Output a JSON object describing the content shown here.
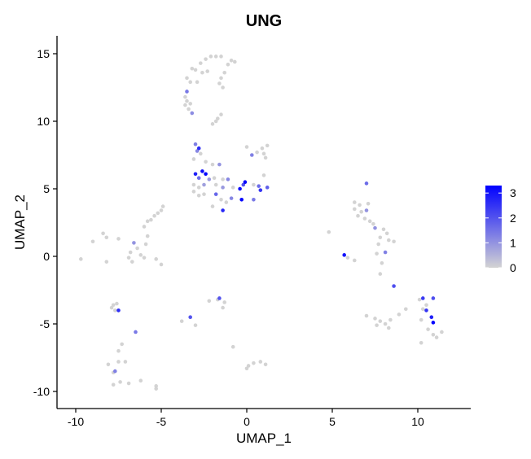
{
  "chart_data": {
    "type": "scatter",
    "title": "UNG",
    "xlabel": "UMAP_1",
    "ylabel": "UMAP_2",
    "xlim": [
      -11,
      13
    ],
    "ylim": [
      -11.2,
      16.2
    ],
    "xticks": [
      -10,
      -5,
      0,
      5,
      10
    ],
    "yticks": [
      -10,
      -5,
      0,
      5,
      10,
      15
    ],
    "grid": false,
    "legend": {
      "position": "right",
      "type": "colorbar",
      "min": 0,
      "max": 3.3,
      "ticks": [
        0,
        1,
        2,
        3
      ],
      "low_color": "#d3d3d3",
      "high_color": "#0000ff"
    },
    "points": [
      {
        "x": -2.4,
        "y": 14.6,
        "v": 0
      },
      {
        "x": -2.1,
        "y": 14.8,
        "v": 0
      },
      {
        "x": -1.8,
        "y": 14.8,
        "v": 0
      },
      {
        "x": -1.5,
        "y": 14.8,
        "v": 0
      },
      {
        "x": -2.7,
        "y": 14.3,
        "v": 0
      },
      {
        "x": -3.0,
        "y": 13.8,
        "v": 0
      },
      {
        "x": -3.2,
        "y": 13.9,
        "v": 0
      },
      {
        "x": -2.6,
        "y": 13.6,
        "v": 0
      },
      {
        "x": -2.3,
        "y": 13.7,
        "v": 0
      },
      {
        "x": -3.5,
        "y": 13.2,
        "v": 0
      },
      {
        "x": -3.3,
        "y": 12.9,
        "v": 0
      },
      {
        "x": -2.9,
        "y": 12.9,
        "v": 0
      },
      {
        "x": -1.1,
        "y": 14.2,
        "v": 0
      },
      {
        "x": -0.9,
        "y": 14.5,
        "v": 0
      },
      {
        "x": -0.7,
        "y": 14.4,
        "v": 0
      },
      {
        "x": -1.3,
        "y": 13.6,
        "v": 0
      },
      {
        "x": -1.5,
        "y": 13.2,
        "v": 0
      },
      {
        "x": -1.6,
        "y": 12.8,
        "v": 0
      },
      {
        "x": -1.4,
        "y": 12.5,
        "v": 0
      },
      {
        "x": -3.5,
        "y": 12.2,
        "v": 1.4
      },
      {
        "x": -3.6,
        "y": 11.8,
        "v": 0
      },
      {
        "x": -3.5,
        "y": 11.5,
        "v": 0
      },
      {
        "x": -3.3,
        "y": 11.3,
        "v": 0
      },
      {
        "x": -3.6,
        "y": 11.2,
        "v": 0
      },
      {
        "x": -3.4,
        "y": 10.9,
        "v": 0
      },
      {
        "x": -3.2,
        "y": 10.6,
        "v": 1.1
      },
      {
        "x": -1.5,
        "y": 10.5,
        "v": 0
      },
      {
        "x": -1.7,
        "y": 10.2,
        "v": 0
      },
      {
        "x": -1.8,
        "y": 10.0,
        "v": 0
      },
      {
        "x": -2.0,
        "y": 9.8,
        "v": 0
      },
      {
        "x": -3.0,
        "y": 8.3,
        "v": 1.3
      },
      {
        "x": -2.8,
        "y": 8.0,
        "v": 2.6
      },
      {
        "x": -2.9,
        "y": 7.8,
        "v": 1.2
      },
      {
        "x": -2.7,
        "y": 7.6,
        "v": 0
      },
      {
        "x": -3.1,
        "y": 7.2,
        "v": 0
      },
      {
        "x": -2.4,
        "y": 7.0,
        "v": 0
      },
      {
        "x": -2.0,
        "y": 6.8,
        "v": 0
      },
      {
        "x": -1.6,
        "y": 6.8,
        "v": 1.0
      },
      {
        "x": 0.0,
        "y": 8.1,
        "v": 0
      },
      {
        "x": 0.6,
        "y": 7.7,
        "v": 0
      },
      {
        "x": 0.9,
        "y": 8.0,
        "v": 0
      },
      {
        "x": 1.2,
        "y": 8.2,
        "v": 0
      },
      {
        "x": 1.0,
        "y": 7.6,
        "v": 0
      },
      {
        "x": 0.3,
        "y": 7.5,
        "v": 1.3
      },
      {
        "x": 1.1,
        "y": 7.3,
        "v": 0
      },
      {
        "x": -2.6,
        "y": 6.3,
        "v": 3.1
      },
      {
        "x": -3.0,
        "y": 6.1,
        "v": 2.8
      },
      {
        "x": -2.4,
        "y": 6.1,
        "v": 3.2
      },
      {
        "x": -2.8,
        "y": 5.8,
        "v": 1.6
      },
      {
        "x": -2.2,
        "y": 5.7,
        "v": 0.9
      },
      {
        "x": -1.9,
        "y": 5.8,
        "v": 0
      },
      {
        "x": -1.4,
        "y": 5.7,
        "v": 0
      },
      {
        "x": -1.1,
        "y": 5.7,
        "v": 1.2
      },
      {
        "x": -3.1,
        "y": 5.3,
        "v": 0
      },
      {
        "x": -2.8,
        "y": 5.1,
        "v": 0
      },
      {
        "x": -2.5,
        "y": 5.3,
        "v": 0.8
      },
      {
        "x": -1.8,
        "y": 5.3,
        "v": 0
      },
      {
        "x": -1.4,
        "y": 5.1,
        "v": 0.9
      },
      {
        "x": -0.8,
        "y": 5.1,
        "v": 0
      },
      {
        "x": -0.4,
        "y": 5.0,
        "v": 3.1
      },
      {
        "x": -0.2,
        "y": 5.3,
        "v": 2.0
      },
      {
        "x": -0.1,
        "y": 5.5,
        "v": 3.2
      },
      {
        "x": 0.4,
        "y": 5.3,
        "v": 0
      },
      {
        "x": 0.7,
        "y": 5.2,
        "v": 1.6
      },
      {
        "x": 1.2,
        "y": 5.1,
        "v": 1.8
      },
      {
        "x": 0.8,
        "y": 4.9,
        "v": 2.5
      },
      {
        "x": 1.0,
        "y": 6.0,
        "v": 0
      },
      {
        "x": -3.1,
        "y": 4.8,
        "v": 0
      },
      {
        "x": -2.8,
        "y": 4.5,
        "v": 0
      },
      {
        "x": -2.5,
        "y": 4.6,
        "v": 0
      },
      {
        "x": -1.8,
        "y": 4.6,
        "v": 1.7
      },
      {
        "x": -1.5,
        "y": 4.2,
        "v": 0
      },
      {
        "x": -1.2,
        "y": 4.0,
        "v": 0
      },
      {
        "x": -0.9,
        "y": 4.3,
        "v": 1.2
      },
      {
        "x": -0.3,
        "y": 4.2,
        "v": 3.2
      },
      {
        "x": 0.4,
        "y": 4.2,
        "v": 1.4
      },
      {
        "x": -1.4,
        "y": 3.4,
        "v": 2.7
      },
      {
        "x": -2.0,
        "y": 3.7,
        "v": 0
      },
      {
        "x": -4.9,
        "y": 3.7,
        "v": 0
      },
      {
        "x": -5.0,
        "y": 3.4,
        "v": 0
      },
      {
        "x": -5.2,
        "y": 3.2,
        "v": 0
      },
      {
        "x": -5.4,
        "y": 3.0,
        "v": 0
      },
      {
        "x": -5.6,
        "y": 2.7,
        "v": 0
      },
      {
        "x": -5.8,
        "y": 2.6,
        "v": 0
      },
      {
        "x": -8.4,
        "y": 1.7,
        "v": 0
      },
      {
        "x": -8.2,
        "y": 1.4,
        "v": 0
      },
      {
        "x": -7.5,
        "y": 1.3,
        "v": 0
      },
      {
        "x": -9.0,
        "y": 1.1,
        "v": 0
      },
      {
        "x": -6.6,
        "y": 1.0,
        "v": 1.0
      },
      {
        "x": -6.4,
        "y": 0.6,
        "v": 0
      },
      {
        "x": -6.8,
        "y": 0.3,
        "v": 0
      },
      {
        "x": -6.9,
        "y": -0.1,
        "v": 0
      },
      {
        "x": -6.7,
        "y": -0.4,
        "v": 0
      },
      {
        "x": -6.2,
        "y": 0.1,
        "v": 0
      },
      {
        "x": -6.0,
        "y": -0.1,
        "v": 0
      },
      {
        "x": -5.9,
        "y": 0.9,
        "v": 0
      },
      {
        "x": -5.8,
        "y": 1.5,
        "v": 0
      },
      {
        "x": -6.0,
        "y": 2.2,
        "v": 0
      },
      {
        "x": -5.3,
        "y": -0.2,
        "v": 0
      },
      {
        "x": -5.0,
        "y": -0.6,
        "v": 0
      },
      {
        "x": -9.7,
        "y": -0.2,
        "v": 0
      },
      {
        "x": -8.2,
        "y": -0.4,
        "v": 0
      },
      {
        "x": -7.8,
        "y": -3.6,
        "v": 0
      },
      {
        "x": -7.6,
        "y": -3.5,
        "v": 0
      },
      {
        "x": -7.9,
        "y": -3.8,
        "v": 0
      },
      {
        "x": -7.7,
        "y": -4.0,
        "v": 0
      },
      {
        "x": -7.5,
        "y": -4.0,
        "v": 2.6
      },
      {
        "x": -7.3,
        "y": -6.5,
        "v": 0
      },
      {
        "x": -7.5,
        "y": -7.0,
        "v": 0
      },
      {
        "x": -6.5,
        "y": -5.6,
        "v": 1.4
      },
      {
        "x": -8.1,
        "y": -8.0,
        "v": 0
      },
      {
        "x": -7.7,
        "y": -8.5,
        "v": 1.3
      },
      {
        "x": -7.8,
        "y": -8.6,
        "v": 0
      },
      {
        "x": -7.5,
        "y": -7.8,
        "v": 0
      },
      {
        "x": -7.1,
        "y": -7.8,
        "v": 0
      },
      {
        "x": -7.8,
        "y": -9.5,
        "v": 0
      },
      {
        "x": -7.4,
        "y": -9.3,
        "v": 0
      },
      {
        "x": -6.9,
        "y": -9.4,
        "v": 0
      },
      {
        "x": -6.2,
        "y": -9.2,
        "v": 0
      },
      {
        "x": -5.3,
        "y": -9.6,
        "v": 0
      },
      {
        "x": -5.3,
        "y": -9.8,
        "v": 0
      },
      {
        "x": -1.7,
        "y": -3.2,
        "v": 0
      },
      {
        "x": -1.6,
        "y": -3.1,
        "v": 2.0
      },
      {
        "x": -1.3,
        "y": -3.4,
        "v": 0
      },
      {
        "x": -2.2,
        "y": -3.3,
        "v": 0
      },
      {
        "x": -1.4,
        "y": -3.8,
        "v": 0
      },
      {
        "x": -3.3,
        "y": -4.5,
        "v": 2.0
      },
      {
        "x": -3.8,
        "y": -4.8,
        "v": 0
      },
      {
        "x": -3.0,
        "y": -5.1,
        "v": 0
      },
      {
        "x": -0.8,
        "y": -6.7,
        "v": 0
      },
      {
        "x": 0.4,
        "y": -7.9,
        "v": 0
      },
      {
        "x": 0.8,
        "y": -7.8,
        "v": 0
      },
      {
        "x": 1.1,
        "y": -8.0,
        "v": 0
      },
      {
        "x": 0.0,
        "y": -8.3,
        "v": 0
      },
      {
        "x": 0.1,
        "y": -8.1,
        "v": 0
      },
      {
        "x": 7.0,
        "y": 5.4,
        "v": 1.6
      },
      {
        "x": 6.3,
        "y": 4.0,
        "v": 0
      },
      {
        "x": 6.6,
        "y": 3.8,
        "v": 0
      },
      {
        "x": 7.1,
        "y": 3.9,
        "v": 0
      },
      {
        "x": 6.3,
        "y": 3.5,
        "v": 0
      },
      {
        "x": 6.7,
        "y": 3.3,
        "v": 0
      },
      {
        "x": 7.0,
        "y": 3.4,
        "v": 1.0
      },
      {
        "x": 6.5,
        "y": 3.0,
        "v": 0
      },
      {
        "x": 6.9,
        "y": 2.8,
        "v": 0
      },
      {
        "x": 7.2,
        "y": 2.6,
        "v": 0
      },
      {
        "x": 7.4,
        "y": 2.4,
        "v": 0
      },
      {
        "x": 7.5,
        "y": 2.1,
        "v": 1.0
      },
      {
        "x": 8.0,
        "y": 2.0,
        "v": 0
      },
      {
        "x": 8.2,
        "y": 1.7,
        "v": 0
      },
      {
        "x": 7.8,
        "y": 1.4,
        "v": 0
      },
      {
        "x": 8.6,
        "y": 1.1,
        "v": 0
      },
      {
        "x": 8.3,
        "y": 1.2,
        "v": 0
      },
      {
        "x": 7.7,
        "y": 0.9,
        "v": 0
      },
      {
        "x": 8.1,
        "y": 0.3,
        "v": 1.3
      },
      {
        "x": 7.6,
        "y": 0.2,
        "v": 0
      },
      {
        "x": 5.7,
        "y": 0.1,
        "v": 3.0
      },
      {
        "x": 5.9,
        "y": -0.1,
        "v": 0
      },
      {
        "x": 6.3,
        "y": -0.3,
        "v": 0
      },
      {
        "x": 4.8,
        "y": 1.8,
        "v": 0
      },
      {
        "x": 7.9,
        "y": -0.5,
        "v": 0
      },
      {
        "x": 7.8,
        "y": -1.3,
        "v": 0
      },
      {
        "x": 8.6,
        "y": -2.2,
        "v": 2.1
      },
      {
        "x": 10.1,
        "y": -3.2,
        "v": 0
      },
      {
        "x": 10.3,
        "y": -3.1,
        "v": 2.4
      },
      {
        "x": 10.9,
        "y": -3.1,
        "v": 2.1
      },
      {
        "x": 10.5,
        "y": -3.6,
        "v": 0
      },
      {
        "x": 10.3,
        "y": -3.9,
        "v": 0
      },
      {
        "x": 10.5,
        "y": -4.0,
        "v": 2.5
      },
      {
        "x": 10.8,
        "y": -4.5,
        "v": 2.8
      },
      {
        "x": 10.9,
        "y": -4.9,
        "v": 3.2
      },
      {
        "x": 10.2,
        "y": -4.7,
        "v": 0
      },
      {
        "x": 10.6,
        "y": -5.4,
        "v": 0
      },
      {
        "x": 10.9,
        "y": -5.8,
        "v": 0
      },
      {
        "x": 11.1,
        "y": -6.0,
        "v": 0
      },
      {
        "x": 11.4,
        "y": -5.6,
        "v": 0
      },
      {
        "x": 10.2,
        "y": -6.4,
        "v": 0
      },
      {
        "x": 7.0,
        "y": -4.4,
        "v": 0
      },
      {
        "x": 7.5,
        "y": -4.6,
        "v": 0
      },
      {
        "x": 7.8,
        "y": -4.8,
        "v": 0
      },
      {
        "x": 8.1,
        "y": -5.0,
        "v": 0
      },
      {
        "x": 8.4,
        "y": -4.7,
        "v": 0
      },
      {
        "x": 8.9,
        "y": -4.3,
        "v": 0
      },
      {
        "x": 9.3,
        "y": -3.9,
        "v": 0
      },
      {
        "x": 8.3,
        "y": -5.3,
        "v": 0
      },
      {
        "x": 7.6,
        "y": -5.1,
        "v": 0
      }
    ]
  }
}
